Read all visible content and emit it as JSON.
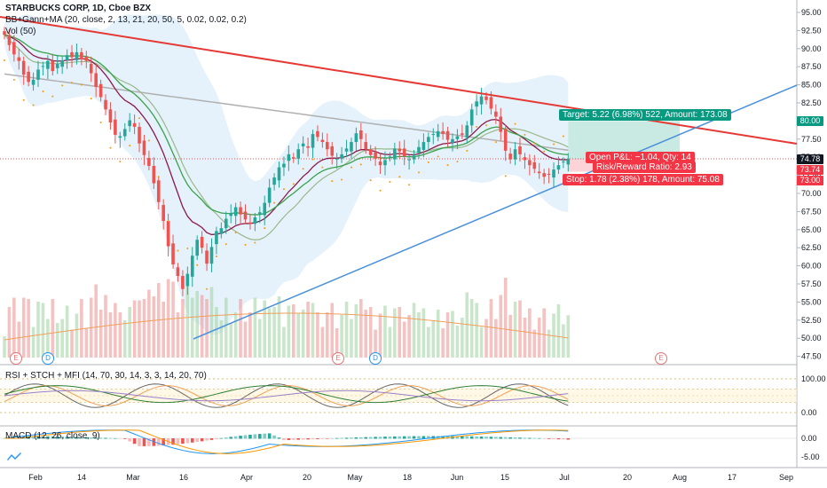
{
  "header": {
    "title": "STARBUCKS CORP, 1D, Cboe BZX",
    "indicator1": "BB+Gann+MA (20, close, 2, 13, 21, 20, 50, 5, 0.02, 0.02, 0.2)",
    "indicator2": "Vol (50)"
  },
  "price_axis": {
    "ticks": [
      "95.00",
      "92.50",
      "90.00",
      "87.50",
      "85.00",
      "82.50",
      "80.00",
      "77.50",
      "75.00",
      "72.50",
      "70.00",
      "67.50",
      "65.00",
      "62.50",
      "60.00",
      "57.50",
      "55.00",
      "52.50",
      "50.00",
      "47.50"
    ],
    "tag_80": "80.00",
    "tag_last": "74.78",
    "tag_7374": "73.74",
    "tag_73": "73.00"
  },
  "position": {
    "target": "Target: 5.22 (6.98%) 522, Amount: 173.08",
    "open_pl": "Open P&L: −1.04, Qty: 14",
    "risk_reward": "Risk/Reward Ratio: 2.93",
    "stop": "Stop: 1.78 (2.38%) 178, Amount: 75.08"
  },
  "events": {
    "e": "E",
    "d": "D"
  },
  "rsi_panel": {
    "legend": "RSI + STCH + MFI (14, 70, 30, 14, 3, 3, 14, 20, 70)",
    "ticks": [
      "100.00",
      "0.00"
    ]
  },
  "macd_panel": {
    "legend": "MACD (12, 26, close, 9)",
    "ticks": [
      "0.00",
      "-5.00"
    ]
  },
  "time_axis": {
    "labels": [
      "Feb",
      "14",
      "Mar",
      "16",
      "Apr",
      "20",
      "May",
      "18",
      "Jun",
      "15",
      "Jul",
      "20",
      "Aug",
      "17",
      "Sep"
    ]
  },
  "colors": {
    "up": "#26a69a",
    "down": "#ef5350",
    "trend_red": "#e53935",
    "trend_blue": "#4a90d9",
    "target_green": "#089981",
    "stop_red": "#f23645"
  },
  "chart_data": {
    "type": "candlestick",
    "symbol": "STARBUCKS CORP",
    "interval": "1D",
    "exchange": "Cboe BZX",
    "ylim": [
      47.5,
      95
    ],
    "close": [
      91.9,
      90.5,
      89.2,
      88.3,
      86.4,
      85.4,
      85.7,
      87.1,
      87.6,
      88.3,
      86.9,
      87.9,
      88.4,
      89.1,
      88.8,
      89.5,
      88.5,
      88.3,
      86.6,
      84.7,
      83.3,
      81.6,
      79.8,
      78.1,
      77.9,
      78.9,
      80.1,
      79.2,
      76.9,
      75.3,
      73.8,
      71.4,
      68.8,
      66.2,
      62.7,
      60.2,
      58.6,
      56.8,
      58.9,
      61.4,
      63.6,
      62.5,
      60.3,
      62.6,
      64.8,
      65.2,
      66.5,
      67.3,
      68.1,
      67.1,
      66.4,
      65.8,
      66.7,
      67.4,
      68.7,
      70.8,
      72.2,
      73.6,
      74.1,
      75.4,
      74.8,
      76.1,
      76.9,
      76.3,
      78.2,
      77.8,
      77.1,
      76.1,
      75.2,
      74.8,
      75.4,
      76.2,
      77.1,
      78.3,
      77.5,
      76.1,
      75.3,
      74.8,
      73.9,
      74.6,
      75.1,
      76.2,
      75.8,
      75.1,
      74.7,
      75.2,
      76.4,
      77.1,
      77.8,
      78.2,
      78.6,
      78.2,
      77.4,
      77.5,
      77.9,
      78.1,
      79.4,
      81.6,
      82.7,
      83.4,
      82.9,
      81.7,
      80.6,
      78.5,
      75.9,
      74.7,
      76.1,
      75.4,
      74.6,
      73.9,
      73.4,
      72.8,
      72.3,
      72.6,
      73.3,
      73.9,
      74.4,
      74.78
    ]
  }
}
